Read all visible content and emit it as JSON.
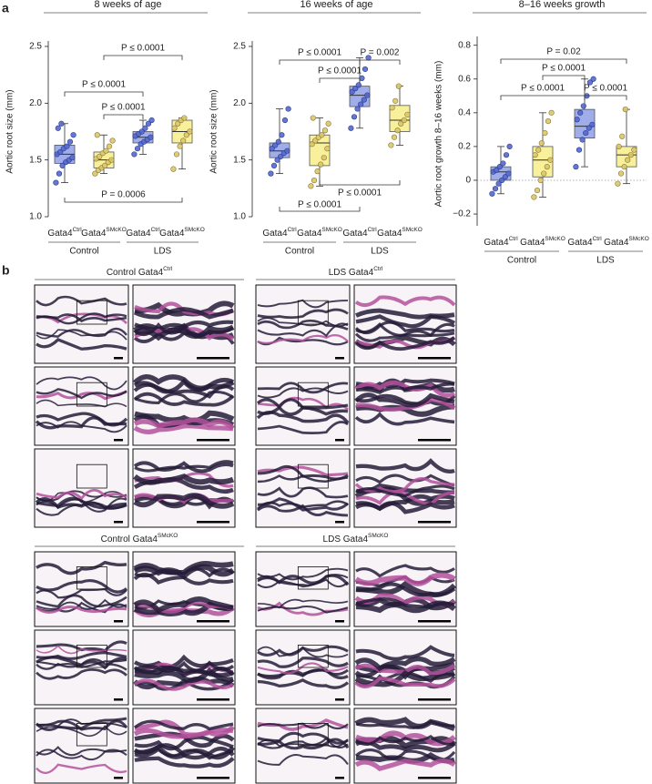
{
  "panel_a_label": "a",
  "chart_data": [
    {
      "type": "box",
      "title": "8 weeks of age",
      "y_label": "Aortic root size (mm)",
      "categories": [
        {
          "name": "Gata4",
          "sup": "Ctrl"
        },
        {
          "name": "Gata4",
          "sup": "SMcKO"
        },
        {
          "name": "Gata4",
          "sup": "Ctrl"
        },
        {
          "name": "Gata4",
          "sup": "SMcKO"
        }
      ],
      "group_labels": [
        "Control",
        "LDS"
      ],
      "ylim": [
        1.0,
        2.5
      ],
      "yticks": [
        {
          "value": 1,
          "label": "1.0"
        },
        {
          "value": 1.5,
          "label": "1.5"
        },
        {
          "value": 2,
          "label": "2.0"
        },
        {
          "value": 2.5,
          "label": "2.5"
        }
      ],
      "boxes": [
        {
          "color": "#9fadea",
          "point_color": "#5468cc",
          "min": 1.3,
          "q1": 1.47,
          "median": 1.55,
          "q3": 1.63,
          "max": 1.82,
          "points": [
            1.3,
            1.38,
            1.45,
            1.48,
            1.5,
            1.52,
            1.55,
            1.57,
            1.6,
            1.62,
            1.66,
            1.72,
            1.78,
            1.82
          ]
        },
        {
          "color": "#f8f09a",
          "point_color": "#d9c86a",
          "min": 1.38,
          "q1": 1.43,
          "median": 1.5,
          "q3": 1.57,
          "max": 1.72,
          "points": [
            1.38,
            1.41,
            1.43,
            1.45,
            1.48,
            1.5,
            1.51,
            1.53,
            1.56,
            1.58,
            1.62,
            1.67,
            1.72
          ]
        },
        {
          "color": "#9fadea",
          "point_color": "#5468cc",
          "min": 1.55,
          "q1": 1.65,
          "median": 1.7,
          "q3": 1.75,
          "max": 1.85,
          "points": [
            1.55,
            1.6,
            1.64,
            1.66,
            1.68,
            1.7,
            1.71,
            1.73,
            1.75,
            1.78,
            1.82,
            1.85
          ]
        },
        {
          "color": "#f8f09a",
          "point_color": "#d9c86a",
          "min": 1.42,
          "q1": 1.65,
          "median": 1.75,
          "q3": 1.85,
          "max": 1.87,
          "points": [
            1.42,
            1.55,
            1.62,
            1.67,
            1.72,
            1.75,
            1.78,
            1.82,
            1.85,
            1.87
          ]
        }
      ],
      "annotations": [
        "P ≤ 0.0001",
        "P ≤ 0.0001",
        "P ≤ 0.0001",
        "P = 0.0006"
      ]
    },
    {
      "type": "box",
      "title": "16 weeks of age",
      "y_label": "Aortic root size (mm)",
      "categories": [
        {
          "name": "Gata4",
          "sup": "Ctrl"
        },
        {
          "name": "Gata4",
          "sup": "SMcKO"
        },
        {
          "name": "Gata4",
          "sup": "Ctrl"
        },
        {
          "name": "Gata4",
          "sup": "SMcKO"
        }
      ],
      "group_labels": [
        "Control",
        "LDS"
      ],
      "ylim": [
        1.0,
        2.5
      ],
      "yticks": [
        {
          "value": 1,
          "label": "1.0"
        },
        {
          "value": 1.5,
          "label": "1.5"
        },
        {
          "value": 2,
          "label": "2.0"
        },
        {
          "value": 2.5,
          "label": "2.5"
        }
      ],
      "boxes": [
        {
          "color": "#9fadea",
          "point_color": "#5468cc",
          "min": 1.38,
          "q1": 1.52,
          "median": 1.58,
          "q3": 1.65,
          "max": 1.95,
          "points": [
            1.38,
            1.45,
            1.5,
            1.53,
            1.56,
            1.58,
            1.6,
            1.63,
            1.66,
            1.72,
            1.85,
            1.95
          ]
        },
        {
          "color": "#f8f09a",
          "point_color": "#d9c86a",
          "min": 1.27,
          "q1": 1.45,
          "median": 1.65,
          "q3": 1.72,
          "max": 1.87,
          "points": [
            1.27,
            1.32,
            1.4,
            1.46,
            1.52,
            1.6,
            1.64,
            1.67,
            1.7,
            1.72,
            1.76,
            1.82,
            1.87
          ]
        },
        {
          "color": "#9fadea",
          "point_color": "#5468cc",
          "min": 1.78,
          "q1": 1.97,
          "median": 2.07,
          "q3": 2.15,
          "max": 2.4,
          "points": [
            1.78,
            1.88,
            1.95,
            1.99,
            2.03,
            2.07,
            2.1,
            2.13,
            2.16,
            2.22,
            2.3,
            2.4
          ]
        },
        {
          "color": "#f8f09a",
          "point_color": "#d9c86a",
          "min": 1.63,
          "q1": 1.75,
          "median": 1.85,
          "q3": 1.98,
          "max": 2.15,
          "points": [
            1.63,
            1.7,
            1.76,
            1.82,
            1.85,
            1.9,
            1.96,
            2.02,
            2.15
          ]
        }
      ],
      "annotations": [
        "P ≤ 0.0001",
        "P = 0.002",
        "P ≤ 0.0001",
        "P ≤ 0.0001",
        "P ≤ 0.0001"
      ]
    },
    {
      "type": "box",
      "title": "8–16 weeks growth",
      "y_label": "Aortic root growth 8–16 weeks (mm)",
      "categories": [
        {
          "name": "Gata4",
          "sup": "Ctrl"
        },
        {
          "name": "Gata4",
          "sup": "SMcKO"
        },
        {
          "name": "Gata4",
          "sup": "Ctrl"
        },
        {
          "name": "Gata4",
          "sup": "SMcKO"
        }
      ],
      "group_labels": [
        "Control",
        "LDS"
      ],
      "ylim": [
        -0.27,
        0.82
      ],
      "yticks": [
        {
          "value": -0.2,
          "label": "−0.2"
        },
        0,
        0.2,
        0.4,
        0.6,
        0.8
      ],
      "reference_line": 0,
      "boxes": [
        {
          "color": "#9fadea",
          "point_color": "#5468cc",
          "min": -0.08,
          "q1": 0.0,
          "median": 0.05,
          "q3": 0.08,
          "max": 0.2,
          "points": [
            -0.08,
            -0.05,
            -0.02,
            0.0,
            0.02,
            0.04,
            0.05,
            0.06,
            0.08,
            0.1,
            0.15,
            0.2
          ]
        },
        {
          "color": "#f8f09a",
          "point_color": "#d9c86a",
          "min": -0.1,
          "q1": 0.02,
          "median": 0.12,
          "q3": 0.2,
          "max": 0.4,
          "points": [
            -0.1,
            -0.06,
            0.0,
            0.04,
            0.08,
            0.12,
            0.15,
            0.18,
            0.22,
            0.28,
            0.35,
            0.4
          ]
        },
        {
          "color": "#9fadea",
          "point_color": "#5468cc",
          "min": 0.08,
          "q1": 0.25,
          "median": 0.32,
          "q3": 0.42,
          "max": 0.6,
          "points": [
            0.08,
            0.18,
            0.24,
            0.28,
            0.31,
            0.33,
            0.36,
            0.4,
            0.44,
            0.5,
            0.58,
            0.6
          ]
        },
        {
          "color": "#f8f09a",
          "point_color": "#d9c86a",
          "min": -0.02,
          "q1": 0.08,
          "median": 0.15,
          "q3": 0.2,
          "max": 0.42,
          "points": [
            -0.02,
            0.04,
            0.08,
            0.12,
            0.15,
            0.18,
            0.2,
            0.26,
            0.42
          ]
        }
      ],
      "annotations": [
        "P = 0.02",
        "P ≤ 0.0001",
        "P ≤ 0.0001",
        "P ≤ 0.0001"
      ]
    }
  ],
  "panel_b": {
    "label": "b",
    "panels": [
      {
        "title": "Control Gata4",
        "sup": "Ctrl"
      },
      {
        "title": "LDS Gata4",
        "sup": "Ctrl"
      },
      {
        "title": "Control Gata4",
        "sup": "SMcKO"
      },
      {
        "title": "LDS Gata4",
        "sup": "SMcKO"
      }
    ]
  }
}
